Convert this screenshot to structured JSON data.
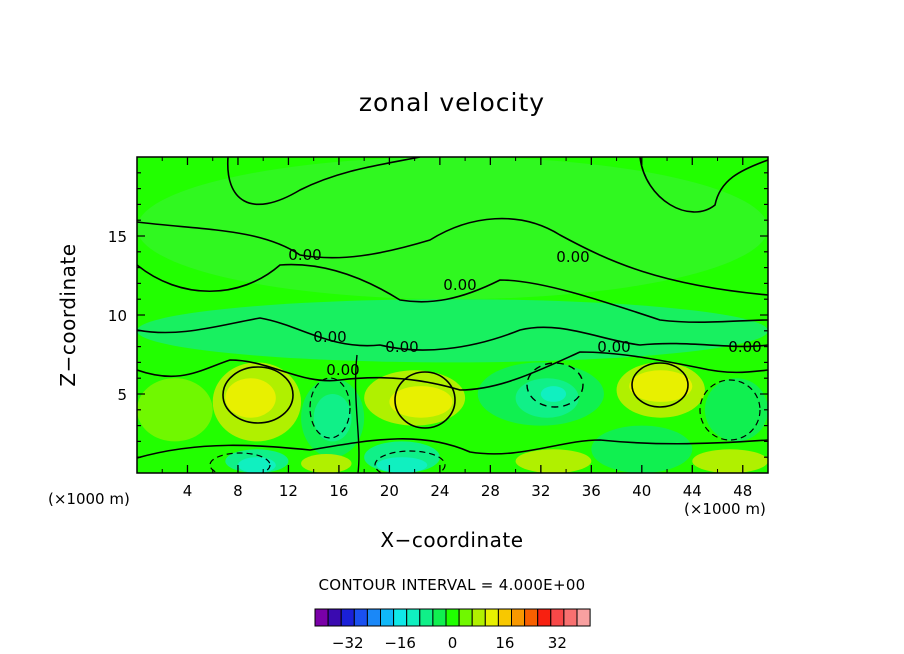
{
  "chart_data": {
    "type": "contour",
    "title": "zonal velocity",
    "xlabel": "X−coordinate",
    "ylabel": "Z−coordinate",
    "x_unit": "(×1000 m)",
    "x_unit_right": "(×1000 m)",
    "xlim": [
      0,
      50
    ],
    "ylim": [
      0,
      20
    ],
    "x_ticks": [
      4,
      8,
      12,
      16,
      20,
      24,
      28,
      32,
      36,
      40,
      44,
      48
    ],
    "x_tick_labels": [
      "4",
      "8",
      "12",
      "16",
      "20",
      "24",
      "28",
      "32",
      "36",
      "40",
      "44",
      "48"
    ],
    "y_ticks": [
      5,
      10,
      15
    ],
    "y_tick_labels": [
      "5",
      "10",
      "15"
    ],
    "contour_interval_text": "CONTOUR INTERVAL = 4.000E+00",
    "contour_labels": [
      "0.00",
      "0.00",
      "0.00",
      "0.00",
      "0.00",
      "0.00",
      "0.00",
      "0.00"
    ],
    "colorbar": {
      "colors": [
        "#7a00a8",
        "#3a0ab0",
        "#1a20d8",
        "#1a50f0",
        "#1a88f8",
        "#10b8f8",
        "#10e8e8",
        "#10f0c0",
        "#10f088",
        "#10f050",
        "#20ff00",
        "#70f800",
        "#b0f000",
        "#e8f000",
        "#f8c800",
        "#f89800",
        "#f86000",
        "#f82010",
        "#f84848",
        "#f87070",
        "#f8a0a0"
      ],
      "tick_values": [
        -32,
        -16,
        0,
        16,
        32
      ],
      "tick_labels": [
        "−32",
        "−16",
        "0",
        "16",
        "32"
      ]
    },
    "background_color": "#22ff00",
    "cells": [
      {
        "x": [
          0,
          6
        ],
        "z": [
          2,
          6
        ],
        "v": 4
      },
      {
        "x": [
          6,
          13
        ],
        "z": [
          2,
          7
        ],
        "v": 8
      },
      {
        "x": [
          7,
          11
        ],
        "z": [
          3.5,
          6
        ],
        "v": 12
      },
      {
        "x": [
          13,
          18
        ],
        "z": [
          1,
          6
        ],
        "v": -4
      },
      {
        "x": [
          14,
          17
        ],
        "z": [
          2,
          5
        ],
        "v": -8
      },
      {
        "x": [
          18,
          26
        ],
        "z": [
          3,
          6.5
        ],
        "v": 8
      },
      {
        "x": [
          20,
          25
        ],
        "z": [
          3.5,
          5.5
        ],
        "v": 12
      },
      {
        "x": [
          27,
          37
        ],
        "z": [
          3,
          7
        ],
        "v": -4
      },
      {
        "x": [
          30,
          35
        ],
        "z": [
          3.5,
          6
        ],
        "v": -8
      },
      {
        "x": [
          32,
          34
        ],
        "z": [
          4.5,
          5.5
        ],
        "v": -12
      },
      {
        "x": [
          38,
          45
        ],
        "z": [
          3.5,
          7
        ],
        "v": 8
      },
      {
        "x": [
          39,
          44
        ],
        "z": [
          4.5,
          6.5
        ],
        "v": 12
      },
      {
        "x": [
          45,
          50
        ],
        "z": [
          2,
          6
        ],
        "v": -4
      },
      {
        "x": [
          7,
          12
        ],
        "z": [
          0,
          1.5
        ],
        "v": -8
      },
      {
        "x": [
          8,
          11
        ],
        "z": [
          0,
          1
        ],
        "v": -12
      },
      {
        "x": [
          13,
          17
        ],
        "z": [
          0,
          1.2
        ],
        "v": 8
      },
      {
        "x": [
          18,
          24
        ],
        "z": [
          0,
          2
        ],
        "v": -8
      },
      {
        "x": [
          19,
          23
        ],
        "z": [
          0,
          1
        ],
        "v": -12
      },
      {
        "x": [
          30,
          36
        ],
        "z": [
          0,
          1.5
        ],
        "v": 8
      },
      {
        "x": [
          36,
          44
        ],
        "z": [
          0,
          3
        ],
        "v": -4
      },
      {
        "x": [
          44,
          50
        ],
        "z": [
          0,
          1.5
        ],
        "v": 8
      },
      {
        "x": [
          0,
          50
        ],
        "z": [
          7,
          11
        ],
        "v": -2
      },
      {
        "x": [
          0,
          50
        ],
        "z": [
          11,
          20
        ],
        "v": 2
      }
    ]
  }
}
